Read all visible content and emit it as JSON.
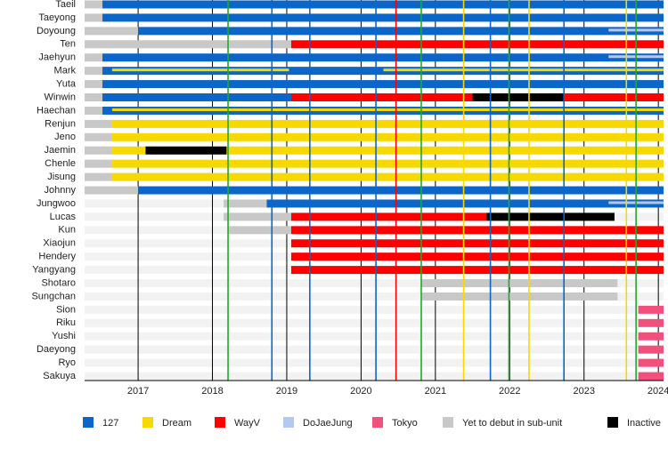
{
  "chart_data": {
    "type": "timeline",
    "xlim": [
      2016.28,
      2024.07
    ],
    "xticks": [
      2017,
      2018,
      2019,
      2020,
      2021,
      2022,
      2023,
      2024
    ],
    "groups": [
      {
        "name": "127",
        "color": "#0a66c8"
      },
      {
        "name": "Dream",
        "color": "#f7d800"
      },
      {
        "name": "WayV",
        "color": "#ff0000"
      },
      {
        "name": "DoJaeJung",
        "color": "#b3c9f2"
      },
      {
        "name": "Tokyo",
        "color": "#f2507c"
      },
      {
        "name": "Yet to debut in sub-unit",
        "color": "#c8c8c8"
      },
      {
        "name": "Inactive",
        "color": "#000000"
      }
    ],
    "rows": [
      {
        "name": "Taeil",
        "segments": [
          {
            "start": 2016.28,
            "end": 2016.52,
            "group": 5
          },
          {
            "start": 2016.52,
            "end": 2024.07,
            "group": 0
          }
        ]
      },
      {
        "name": "Taeyong",
        "segments": [
          {
            "start": 2016.28,
            "end": 2016.52,
            "group": 5
          },
          {
            "start": 2016.52,
            "end": 2024.07,
            "group": 0
          }
        ]
      },
      {
        "name": "Doyoung",
        "segments": [
          {
            "start": 2016.28,
            "end": 2017.0,
            "group": 5
          },
          {
            "start": 2017.0,
            "end": 2024.07,
            "group": 0
          },
          {
            "start": 2023.33,
            "end": 2024.07,
            "group": 3,
            "thin": true
          }
        ]
      },
      {
        "name": "Ten",
        "segments": [
          {
            "start": 2016.28,
            "end": 2019.06,
            "group": 5
          },
          {
            "start": 2019.06,
            "end": 2024.07,
            "group": 2
          }
        ]
      },
      {
        "name": "Jaehyun",
        "segments": [
          {
            "start": 2016.28,
            "end": 2016.52,
            "group": 5
          },
          {
            "start": 2016.52,
            "end": 2024.07,
            "group": 0
          },
          {
            "start": 2023.33,
            "end": 2024.07,
            "group": 3,
            "thin": true
          }
        ]
      },
      {
        "name": "Mark",
        "segments": [
          {
            "start": 2016.28,
            "end": 2016.52,
            "group": 5
          },
          {
            "start": 2016.52,
            "end": 2024.07,
            "group": 0
          },
          {
            "start": 2016.65,
            "end": 2019.03,
            "group": 1,
            "thin": true
          },
          {
            "start": 2020.3,
            "end": 2024.07,
            "group": 1,
            "thin": true
          }
        ]
      },
      {
        "name": "Yuta",
        "segments": [
          {
            "start": 2016.28,
            "end": 2016.52,
            "group": 5
          },
          {
            "start": 2016.52,
            "end": 2024.07,
            "group": 0
          }
        ]
      },
      {
        "name": "Winwin",
        "segments": [
          {
            "start": 2016.28,
            "end": 2016.52,
            "group": 5
          },
          {
            "start": 2016.52,
            "end": 2019.06,
            "group": 0
          },
          {
            "start": 2019.06,
            "end": 2021.5,
            "group": 2
          },
          {
            "start": 2021.5,
            "end": 2022.74,
            "group": 6
          },
          {
            "start": 2022.74,
            "end": 2024.07,
            "group": 2
          }
        ]
      },
      {
        "name": "Haechan",
        "segments": [
          {
            "start": 2016.28,
            "end": 2016.52,
            "group": 5
          },
          {
            "start": 2016.52,
            "end": 2024.07,
            "group": 0
          },
          {
            "start": 2016.65,
            "end": 2024.07,
            "group": 1,
            "thin": true
          }
        ]
      },
      {
        "name": "Renjun",
        "segments": [
          {
            "start": 2016.28,
            "end": 2016.65,
            "group": 5
          },
          {
            "start": 2016.65,
            "end": 2024.07,
            "group": 1
          }
        ]
      },
      {
        "name": "Jeno",
        "segments": [
          {
            "start": 2016.28,
            "end": 2016.65,
            "group": 5
          },
          {
            "start": 2016.65,
            "end": 2024.07,
            "group": 1
          }
        ]
      },
      {
        "name": "Jaemin",
        "segments": [
          {
            "start": 2016.28,
            "end": 2016.65,
            "group": 5
          },
          {
            "start": 2016.65,
            "end": 2024.07,
            "group": 1
          },
          {
            "start": 2017.1,
            "end": 2018.19,
            "group": 6
          }
        ]
      },
      {
        "name": "Chenle",
        "segments": [
          {
            "start": 2016.28,
            "end": 2016.65,
            "group": 5
          },
          {
            "start": 2016.65,
            "end": 2024.07,
            "group": 1
          }
        ]
      },
      {
        "name": "Jisung",
        "segments": [
          {
            "start": 2016.28,
            "end": 2016.65,
            "group": 5
          },
          {
            "start": 2016.65,
            "end": 2024.07,
            "group": 1
          }
        ]
      },
      {
        "name": "Johnny",
        "segments": [
          {
            "start": 2016.28,
            "end": 2017.0,
            "group": 5
          },
          {
            "start": 2017.0,
            "end": 2024.07,
            "group": 0
          }
        ]
      },
      {
        "name": "Jungwoo",
        "segments": [
          {
            "start": 2018.15,
            "end": 2018.73,
            "group": 5
          },
          {
            "start": 2018.73,
            "end": 2024.07,
            "group": 0
          },
          {
            "start": 2023.33,
            "end": 2024.07,
            "group": 3,
            "thin": true
          }
        ]
      },
      {
        "name": "Lucas",
        "segments": [
          {
            "start": 2018.15,
            "end": 2019.06,
            "group": 5
          },
          {
            "start": 2019.06,
            "end": 2021.69,
            "group": 2
          },
          {
            "start": 2021.69,
            "end": 2023.41,
            "group": 6
          }
        ]
      },
      {
        "name": "Kun",
        "segments": [
          {
            "start": 2018.21,
            "end": 2019.06,
            "group": 5
          },
          {
            "start": 2019.06,
            "end": 2024.07,
            "group": 2
          }
        ]
      },
      {
        "name": "Xiaojun",
        "segments": [
          {
            "start": 2019.06,
            "end": 2024.07,
            "group": 2
          }
        ]
      },
      {
        "name": "Hendery",
        "segments": [
          {
            "start": 2019.06,
            "end": 2024.07,
            "group": 2
          }
        ]
      },
      {
        "name": "Yangyang",
        "segments": [
          {
            "start": 2019.06,
            "end": 2024.07,
            "group": 2
          }
        ]
      },
      {
        "name": "Shotaro",
        "segments": [
          {
            "start": 2020.81,
            "end": 2023.45,
            "group": 5
          }
        ]
      },
      {
        "name": "Sungchan",
        "segments": [
          {
            "start": 2020.81,
            "end": 2023.45,
            "group": 5
          }
        ]
      },
      {
        "name": "Sion",
        "segments": [
          {
            "start": 2023.73,
            "end": 2024.07,
            "group": 4
          }
        ]
      },
      {
        "name": "Riku",
        "segments": [
          {
            "start": 2023.73,
            "end": 2024.07,
            "group": 4
          }
        ]
      },
      {
        "name": "Yushi",
        "segments": [
          {
            "start": 2023.73,
            "end": 2024.07,
            "group": 4
          }
        ]
      },
      {
        "name": "Daeyong",
        "segments": [
          {
            "start": 2023.73,
            "end": 2024.07,
            "group": 4
          }
        ]
      },
      {
        "name": "Ryo",
        "segments": [
          {
            "start": 2023.73,
            "end": 2024.07,
            "group": 4
          }
        ]
      },
      {
        "name": "Sakuya",
        "segments": [
          {
            "start": 2023.73,
            "end": 2024.07,
            "group": 4
          }
        ]
      }
    ],
    "events": [
      {
        "date": 2018.21,
        "color": "#22a82a"
      },
      {
        "date": 2018.8,
        "color": "#0a66c8"
      },
      {
        "date": 2019.31,
        "color": "#0a66c8"
      },
      {
        "date": 2020.2,
        "color": "#0a66c8"
      },
      {
        "date": 2020.47,
        "color": "#ff0000"
      },
      {
        "date": 2020.81,
        "color": "#22a82a"
      },
      {
        "date": 2021.38,
        "color": "#f7d800"
      },
      {
        "date": 2021.74,
        "color": "#0a66c8"
      },
      {
        "date": 2021.99,
        "color": "#22a82a"
      },
      {
        "date": 2022.26,
        "color": "#f7d800"
      },
      {
        "date": 2022.73,
        "color": "#0a66c8"
      },
      {
        "date": 2023.57,
        "color": "#f7d800"
      },
      {
        "date": 2023.7,
        "color": "#22a82a"
      }
    ]
  }
}
